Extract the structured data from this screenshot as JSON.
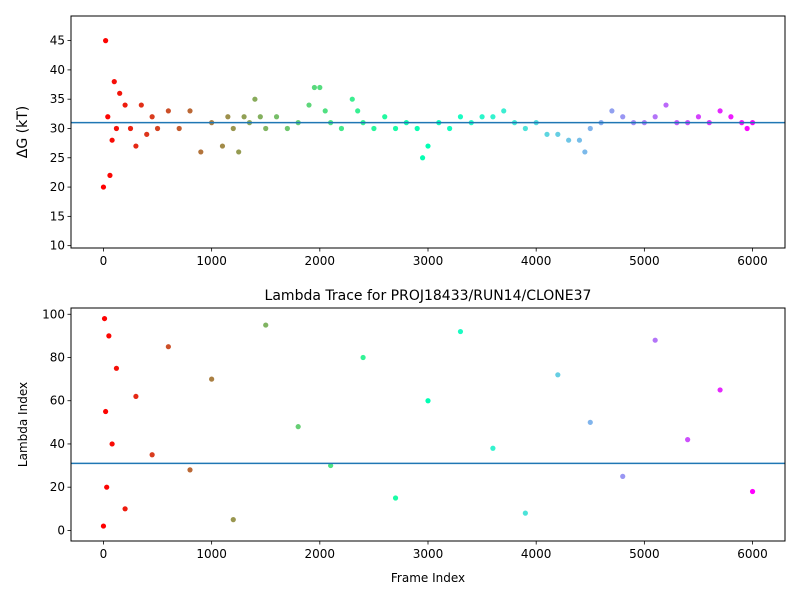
{
  "chart_data": [
    {
      "type": "scatter",
      "title": "",
      "xlabel": "",
      "ylabel": "ΔG (kT)",
      "xlim": [
        -300,
        6300
      ],
      "ylim": [
        9.6,
        49.2
      ],
      "xticks": [
        0,
        1000,
        2000,
        3000,
        4000,
        5000,
        6000
      ],
      "yticks": [
        10,
        15,
        20,
        25,
        30,
        35,
        40,
        45
      ],
      "hline": 31.0,
      "colormap": "rainbow (red at frame 0 → violet at frame 6000)",
      "grid": false,
      "series": [
        {
          "x": [
            0,
            20,
            40,
            60,
            80,
            100,
            120,
            150,
            200,
            250,
            300,
            350,
            400,
            450,
            500,
            600,
            700,
            800,
            900,
            1000,
            1100,
            1150,
            1200,
            1250,
            1300,
            1350,
            1400,
            1450,
            1500,
            1600,
            1700,
            1800,
            1900,
            1950,
            2000,
            2050,
            2100,
            2200,
            2300,
            2350,
            2400,
            2500,
            2600,
            2700,
            2800,
            2900,
            2950,
            3000,
            3100,
            3200,
            3300,
            3400,
            3500,
            3600,
            3700,
            3800,
            3900,
            4000,
            4100,
            4200,
            4300,
            4400,
            4450,
            4500,
            4600,
            4700,
            4800,
            4900,
            5000,
            5100,
            5200,
            5300,
            5400,
            5500,
            5600,
            5700,
            5800,
            5900,
            5950,
            6000
          ],
          "values": [
            20,
            45,
            32,
            22,
            28,
            38,
            30,
            36,
            34,
            30,
            27,
            34,
            29,
            32,
            30,
            33,
            30,
            33,
            26,
            31,
            27,
            32,
            30,
            26,
            32,
            31,
            35,
            32,
            30,
            32,
            30,
            31,
            34,
            37,
            37,
            33,
            31,
            30,
            35,
            33,
            31,
            30,
            32,
            30,
            31,
            30,
            25,
            27,
            31,
            30,
            32,
            31,
            32,
            32,
            33,
            31,
            30,
            31,
            29,
            29,
            28,
            28,
            26,
            30,
            31,
            33,
            32,
            31,
            31,
            32,
            34,
            31,
            31,
            32,
            31,
            33,
            32,
            31,
            30,
            31
          ]
        }
      ]
    },
    {
      "type": "scatter",
      "title": "Lambda Trace for PROJ18433/RUN14/CLONE37",
      "xlabel": "Frame Index",
      "ylabel": "Lambda Index",
      "xlim": [
        -300,
        6300
      ],
      "ylim": [
        -4.9,
        102.9
      ],
      "xticks": [
        0,
        1000,
        2000,
        3000,
        4000,
        5000,
        6000
      ],
      "yticks": [
        0,
        20,
        40,
        60,
        80,
        100
      ],
      "hline": 31.0,
      "colormap": "rainbow (red at frame 0 → violet at frame 6000)",
      "grid": false,
      "series": [
        {
          "x": [
            0,
            10,
            20,
            30,
            50,
            80,
            120,
            200,
            300,
            450,
            600,
            800,
            1000,
            1200,
            1500,
            1800,
            2100,
            2400,
            2700,
            3000,
            3300,
            3600,
            3900,
            4200,
            4500,
            4800,
            5100,
            5400,
            5700,
            6000
          ],
          "values": [
            2,
            98,
            55,
            20,
            90,
            40,
            75,
            10,
            62,
            35,
            85,
            28,
            70,
            5,
            95,
            48,
            30,
            80,
            15,
            60,
            92,
            38,
            8,
            72,
            50,
            25,
            88,
            42,
            65,
            18
          ]
        }
      ]
    }
  ]
}
